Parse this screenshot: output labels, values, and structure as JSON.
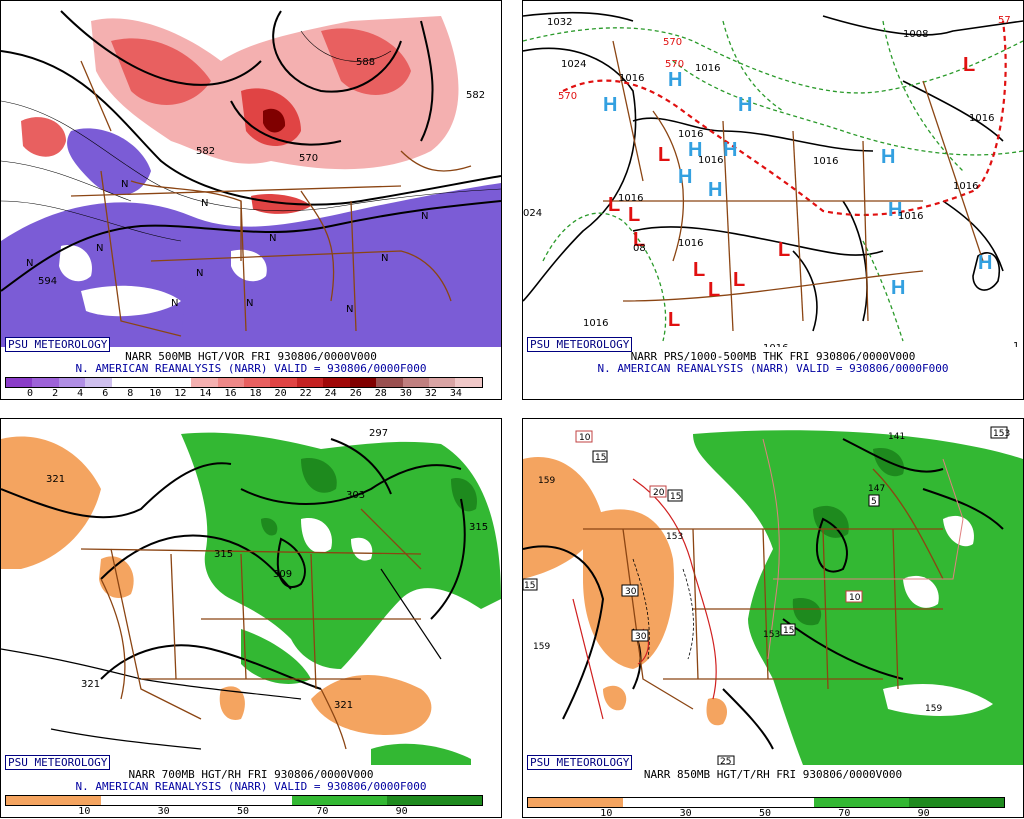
{
  "panels": [
    {
      "logo": "PSU METEOROLOGY",
      "title_line1": "NARR 500MB HGT/VOR FRI 930806/0000V000",
      "title_line2": "N. AMERICAN REANALYSIS (NARR) VALID = 930806/0000F000",
      "colorbar": {
        "labels": [
          "0",
          "2",
          "4",
          "6",
          "8",
          "10",
          "12",
          "14",
          "16",
          "18",
          "20",
          "22",
          "24",
          "26",
          "28",
          "30",
          "32",
          "34"
        ],
        "colors": [
          "#8a3cc8",
          "#9d62d8",
          "#b08ee4",
          "#cfc0ee",
          "#ffffff",
          "#ffffff",
          "#ffffff",
          "#f4b0b0",
          "#ee8888",
          "#e86060",
          "#e04444",
          "#c42222",
          "#a00808",
          "#800000",
          "#9a5050",
          "#c08080",
          "#d9a4a4",
          "#f0c8c8"
        ]
      },
      "contour_labels": [
        "588",
        "582",
        "570",
        "582",
        "594",
        "594"
      ]
    },
    {
      "logo": "PSU METEOROLOGY",
      "title_line1": "NARR PRS/1000-500MB THK FRI 930806/0000V000",
      "title_line2": "N. AMERICAN REANALYSIS (NARR) VALID = 930806/0000F000",
      "contour_labels": [
        "1032",
        "1024",
        "570",
        "570",
        "570",
        "1016",
        "1016",
        "1016",
        "1016",
        "1016",
        "1016",
        "1008",
        "1016",
        "1016",
        "1016",
        "1016",
        "1016",
        "1008",
        "1016",
        "1024",
        "1008",
        "1016",
        "1016",
        "1016"
      ],
      "symbols": {
        "high": "H",
        "low": "L"
      }
    },
    {
      "logo": "PSU METEOROLOGY",
      "title_line1": "NARR 700MB HGT/RH FRI 930806/0000V000",
      "title_line2": "N. AMERICAN REANALYSIS (NARR) VALID = 930806/0000F000",
      "colorbar": {
        "labels": [
          "10",
          "30",
          "50",
          "70",
          "90"
        ],
        "colors": [
          "#f4a460",
          "#ffffff",
          "#ffffff",
          "#33b833",
          "#1e8a1e"
        ]
      },
      "contour_labels": [
        "321",
        "297",
        "303",
        "315",
        "315",
        "309",
        "321",
        "321"
      ]
    },
    {
      "logo": "PSU METEOROLOGY",
      "title_line1": "NARR 850MB HGT/T/RH FRI 930806/0000V000",
      "colorbar": {
        "labels": [
          "10",
          "30",
          "50",
          "70",
          "90"
        ],
        "colors": [
          "#f4a460",
          "#ffffff",
          "#ffffff",
          "#33b833",
          "#1e8a1e"
        ]
      },
      "contour_labels": [
        "10",
        "15",
        "159",
        "20",
        "15",
        "153",
        "147",
        "141",
        "5",
        "15",
        "30",
        "30",
        "10",
        "159",
        "15",
        "159",
        "25",
        "153",
        "153"
      ]
    }
  ],
  "colors": {
    "border": "#8b4513",
    "contour": "#000000",
    "high": "#33a0e0",
    "low": "#e01010",
    "vor_low": "#7b5cd6",
    "vor_high": "#e05050",
    "rh_dry": "#f4a460",
    "rh_moist": "#33b833",
    "logo": "#000080"
  }
}
